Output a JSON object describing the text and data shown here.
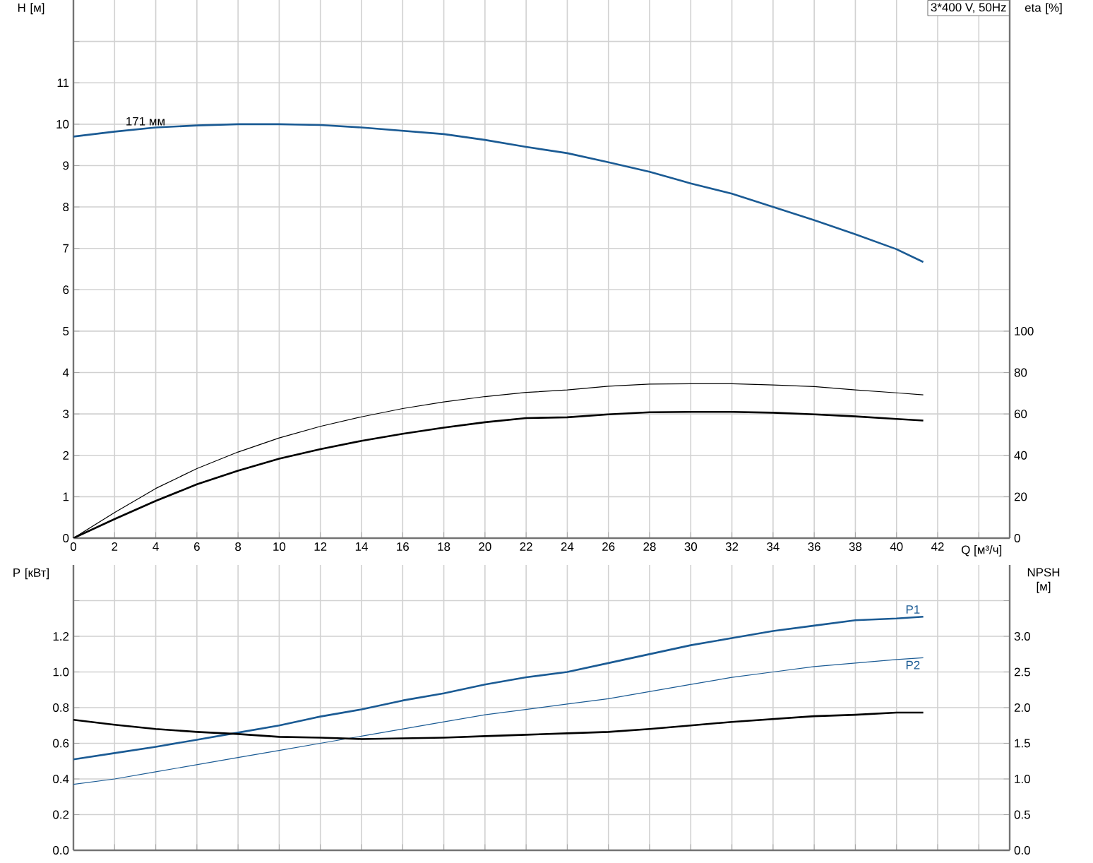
{
  "chart_data": [
    {
      "type": "line",
      "title": "3*400 V, 50Hz",
      "xlabel": "Q [м³/ч]",
      "ylabel": "H [м]",
      "y2label": "eta [%]",
      "grid": true,
      "x": [
        0,
        2,
        4,
        6,
        8,
        10,
        12,
        14,
        16,
        18,
        20,
        22,
        24,
        26,
        28,
        30,
        32,
        34,
        36,
        38,
        40,
        41.3
      ],
      "xlim": [
        0,
        45.5
      ],
      "xticks": [
        0,
        2,
        4,
        6,
        8,
        10,
        12,
        14,
        16,
        18,
        20,
        22,
        24,
        26,
        28,
        30,
        32,
        34,
        36,
        38,
        40,
        42,
        {
          "value": 44,
          "label": null
        }
      ],
      "ylim": [
        0,
        13
      ],
      "yticks": [
        0,
        1,
        2,
        3,
        4,
        5,
        6,
        7,
        8,
        9,
        10,
        11,
        {
          "value": 12,
          "label": null
        }
      ],
      "y2lim": [
        0,
        260
      ],
      "y2ticks": [
        0,
        20,
        40,
        60,
        80,
        100
      ],
      "annotations": [
        {
          "text": "171 мм",
          "x": 3.5,
          "y": 9.93
        }
      ],
      "series": [
        {
          "color": "#1b5b94",
          "values": [
            9.7,
            9.82,
            9.92,
            9.97,
            10.0,
            10.0,
            9.98,
            9.92,
            9.84,
            9.76,
            9.62,
            9.45,
            9.3,
            9.08,
            8.85,
            8.57,
            8.32,
            8.0,
            7.68,
            7.34,
            6.98,
            6.67
          ]
        },
        {
          "color": "#000000",
          "axis": "y2",
          "values": [
            0,
            12.4,
            24,
            33.6,
            41.6,
            48.4,
            54,
            58.6,
            62.6,
            65.8,
            68.4,
            70.4,
            71.6,
            73.4,
            74.4,
            74.6,
            74.6,
            74,
            73.2,
            71.6,
            70.2,
            69.2
          ]
        },
        {
          "color": "#000000",
          "axis": "y2",
          "values": [
            0,
            9.2,
            18,
            26,
            32.6,
            38.4,
            43,
            47,
            50.4,
            53.4,
            56,
            58,
            58.4,
            59.8,
            60.8,
            61,
            61,
            60.6,
            59.8,
            58.8,
            57.6,
            56.8
          ]
        }
      ]
    },
    {
      "type": "line",
      "ylabel": "P [кВт]",
      "y2label": "NPSH [м]",
      "grid": true,
      "tick_labels": "y",
      "x": [
        0,
        2,
        4,
        6,
        8,
        10,
        12,
        14,
        16,
        18,
        20,
        22,
        24,
        26,
        28,
        30,
        32,
        34,
        36,
        38,
        40,
        41.3
      ],
      "xlim": [
        0,
        45.5
      ],
      "xticks": [
        0,
        2,
        4,
        6,
        8,
        10,
        12,
        14,
        16,
        18,
        20,
        22,
        24,
        26,
        28,
        30,
        32,
        34,
        36,
        38,
        40,
        42,
        44
      ],
      "ylim": [
        0,
        1.6
      ],
      "yticks": [
        {
          "value": 0,
          "label": "0.0"
        },
        0.2,
        0.4,
        0.6,
        0.8,
        {
          "value": 1,
          "label": "1.0"
        },
        1.2,
        {
          "value": 1.4,
          "label": null
        }
      ],
      "y2lim": [
        0,
        4
      ],
      "y2ticks": [
        {
          "value": 0,
          "label": "0.0"
        },
        0.5,
        {
          "value": 1,
          "label": "1.0"
        },
        1.5,
        {
          "value": 2,
          "label": "2.0"
        },
        2.5,
        {
          "value": 3,
          "label": "3.0"
        },
        {
          "value": 3.5,
          "label": null
        }
      ],
      "series": [
        {
          "name": "P1",
          "color": "#1b5b94",
          "values": [
            0.51,
            0.545,
            0.58,
            0.62,
            0.66,
            0.7,
            0.75,
            0.79,
            0.84,
            0.88,
            0.93,
            0.97,
            1.0,
            1.05,
            1.1,
            1.15,
            1.19,
            1.23,
            1.26,
            1.29,
            1.3,
            1.31
          ]
        },
        {
          "name": "P2",
          "color": "#1b5b94",
          "values": [
            0.37,
            0.4,
            0.44,
            0.48,
            0.52,
            0.56,
            0.6,
            0.64,
            0.68,
            0.72,
            0.76,
            0.79,
            0.82,
            0.85,
            0.89,
            0.93,
            0.97,
            1.0,
            1.03,
            1.05,
            1.07,
            1.08
          ]
        },
        {
          "color": "#000000",
          "axis": "y2",
          "values": [
            1.83,
            1.76,
            1.7,
            1.66,
            1.63,
            1.59,
            1.58,
            1.56,
            1.57,
            1.58,
            1.6,
            1.62,
            1.64,
            1.66,
            1.7,
            1.75,
            1.8,
            1.84,
            1.88,
            1.9,
            1.93,
            1.93
          ]
        }
      ]
    }
  ]
}
